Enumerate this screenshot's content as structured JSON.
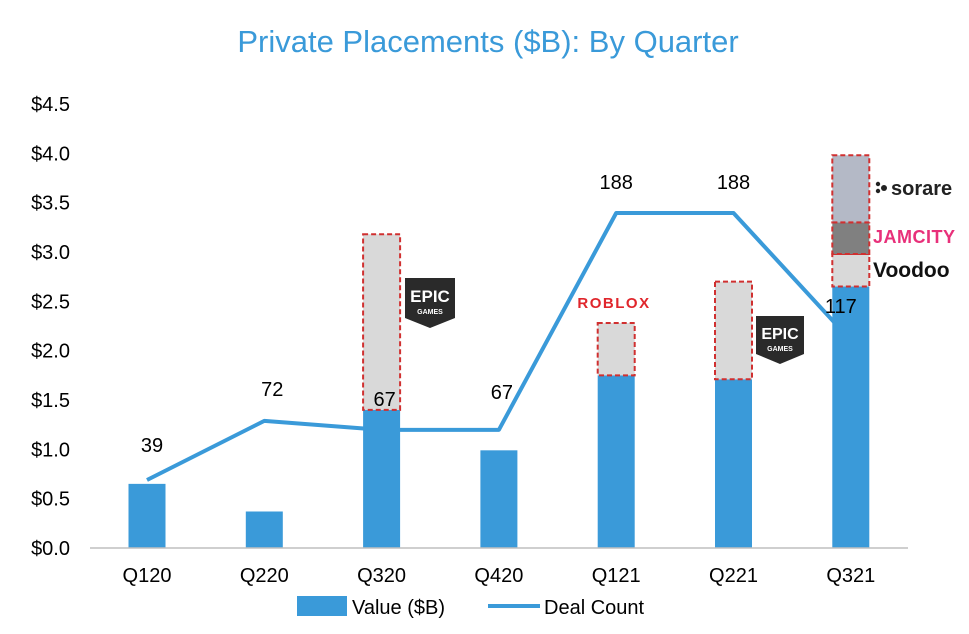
{
  "chart_data": {
    "type": "bar",
    "title": "Private Placements ($B): By Quarter",
    "categories": [
      "Q120",
      "Q220",
      "Q320",
      "Q420",
      "Q121",
      "Q221",
      "Q321"
    ],
    "ylim": [
      0,
      4.5
    ],
    "yticks": [
      "$0.0",
      "$0.5",
      "$1.0",
      "$1.5",
      "$2.0",
      "$2.5",
      "$3.0",
      "$3.5",
      "$4.0",
      "$4.5"
    ],
    "ytick_values": [
      0,
      0.5,
      1.0,
      1.5,
      2.0,
      2.5,
      3.0,
      3.5,
      4.0,
      4.5
    ],
    "grid": false,
    "legend_position": "bottom",
    "series": [
      {
        "name": "Value ($B)",
        "type": "bar",
        "color": "#3a9ad9",
        "values": [
          0.65,
          0.37,
          1.4,
          0.99,
          1.75,
          1.71,
          2.65
        ]
      },
      {
        "name": "Deal Count",
        "type": "line",
        "color": "#3a9ad9",
        "values": [
          39,
          72,
          67,
          67,
          188,
          188,
          117
        ],
        "labels": [
          "39",
          "72",
          "67",
          "67",
          "188",
          "188",
          "117"
        ]
      }
    ],
    "stacked_segments": [
      {
        "category": "Q320",
        "bottom": 1.4,
        "top": 3.18,
        "fill": "#d9d9d9",
        "brand": "EPIC GAMES"
      },
      {
        "category": "Q121",
        "bottom": 1.75,
        "top": 2.28,
        "fill": "#d9d9d9",
        "brand": "ROBLOX"
      },
      {
        "category": "Q221",
        "bottom": 1.71,
        "top": 2.7,
        "fill": "#d9d9d9",
        "brand": "EPIC GAMES"
      },
      {
        "category": "Q321",
        "bottom": 2.65,
        "top": 2.98,
        "fill": "#d9d9d9",
        "brand": "Voodoo"
      },
      {
        "category": "Q321",
        "bottom": 2.98,
        "top": 3.3,
        "fill": "#808080",
        "brand": "JAMCITY"
      },
      {
        "category": "Q321",
        "bottom": 3.3,
        "top": 3.98,
        "fill": "#b4b9c6",
        "brand": "sorare"
      }
    ],
    "colors": {
      "bar": "#3a9ad9",
      "line": "#3a9ad9",
      "segment_border": "#d03030",
      "roblox": "#e0262c",
      "jamcity": "#e8307a"
    }
  },
  "logos": {
    "epic_top": "EPIC",
    "epic_bottom": "GAMES",
    "roblox": "ROBLOX",
    "jamcity": "JAMCITY",
    "sorare": "sorare",
    "voodoo": "Voodoo"
  }
}
